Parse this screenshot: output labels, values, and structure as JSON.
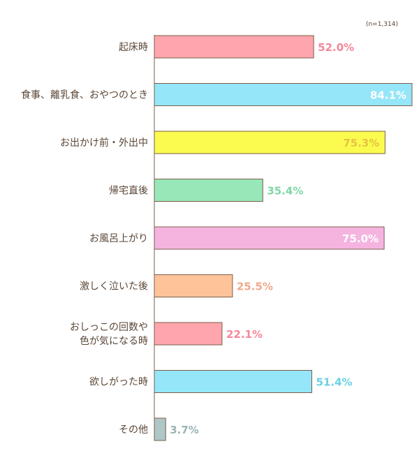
{
  "chart_data": {
    "type": "bar",
    "orientation": "horizontal",
    "note": "(n=1,314)",
    "categories": [
      [
        "起床時"
      ],
      [
        "食事、離乳食、おやつのとき"
      ],
      [
        "お出かけ前・外出中"
      ],
      [
        "帰宅直後"
      ],
      [
        "お風呂上がり"
      ],
      [
        "激しく泣いた後"
      ],
      [
        "おしっこの回数や",
        "色が気になる時"
      ],
      [
        "欲しがった時"
      ],
      [
        "その他"
      ]
    ],
    "values": [
      52.0,
      84.1,
      75.3,
      35.4,
      75.0,
      25.5,
      22.1,
      51.4,
      3.7
    ],
    "value_labels": [
      "52.0%",
      "84.1%",
      "75.3%",
      "35.4%",
      "75.0%",
      "25.5%",
      "22.1%",
      "51.4%",
      "3.7%"
    ],
    "bar_colors": [
      "#ffa5ad",
      "#94e6f8",
      "#fbfb4f",
      "#98e7b8",
      "#f5b4e0",
      "#ffc39a",
      "#ffa5ad",
      "#94e6f8",
      "#afc6c6"
    ],
    "label_colors": [
      "#f5879a",
      "#ffffff",
      "#e6c440",
      "#7fd7a7",
      "#ffffff",
      "#f2a989",
      "#f5879a",
      "#6ad1e3",
      "#9cb3b5"
    ],
    "label_inside": [
      false,
      true,
      true,
      false,
      true,
      false,
      false,
      false,
      false
    ],
    "xlim": [
      0,
      84.1
    ],
    "grid": false,
    "legend": "none"
  }
}
